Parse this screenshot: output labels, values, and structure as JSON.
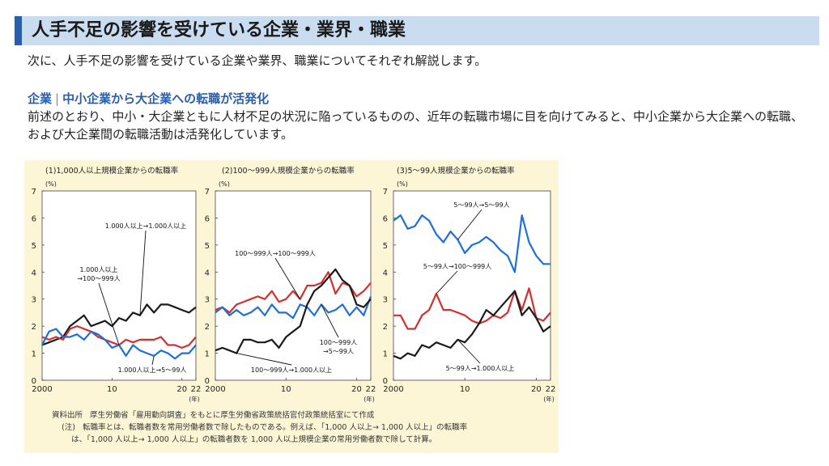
{
  "header": {
    "title": "人手不足の影響を受けている企業・業界・職業"
  },
  "intro": "次に、人手不足の影響を受けている企業や業界、職業についてそれぞれ解説します。",
  "section": {
    "label": "企業",
    "separator": "|",
    "heading": "中小企業から大企業への転職が活発化",
    "body": "前述のとおり、中小・大企業ともに人材不足の状況に陥っているものの、近年の転職市場に目を向けてみると、中小企業から大企業への転職、および大企業間の転職活動は活発化しています。"
  },
  "colors": {
    "black_series": "#1a1a1a",
    "red_series": "#d32f2f",
    "blue_series": "#1e6fd9",
    "figure_bg": "#fdf6d6"
  },
  "chart_data": [
    {
      "type": "line",
      "title": "(1)1,000人以上規模企業からの転職率",
      "y_unit": "(%)",
      "x_unit": "(年)",
      "ylim": [
        0,
        7
      ],
      "yticks": [
        0,
        1,
        2,
        3,
        4,
        5,
        6,
        7
      ],
      "xlim": [
        2000,
        2022
      ],
      "xticks": [
        {
          "v": 2000,
          "label": "2000"
        },
        {
          "v": 2010,
          "label": "10"
        },
        {
          "v": 2020,
          "label": "20"
        },
        {
          "v": 2022,
          "label": "22"
        }
      ],
      "x": [
        2000,
        2001,
        2002,
        2003,
        2004,
        2005,
        2006,
        2007,
        2008,
        2009,
        2010,
        2011,
        2012,
        2013,
        2014,
        2015,
        2016,
        2017,
        2018,
        2019,
        2020,
        2021,
        2022
      ],
      "series": [
        {
          "name": "1,000人以上→1,000人以上",
          "color": "black",
          "values": [
            1.3,
            1.4,
            1.5,
            1.6,
            2.0,
            2.2,
            2.4,
            2.0,
            2.1,
            2.2,
            2.0,
            2.3,
            2.2,
            2.5,
            2.4,
            2.8,
            2.5,
            2.8,
            2.8,
            2.7,
            2.6,
            2.5,
            2.7
          ]
        },
        {
          "name": "1,000人以上→100～999人",
          "color": "red",
          "values": [
            1.6,
            1.5,
            1.6,
            1.5,
            1.9,
            2.0,
            1.9,
            1.8,
            1.6,
            1.5,
            1.4,
            1.3,
            1.5,
            1.4,
            1.5,
            1.5,
            1.5,
            1.6,
            1.3,
            1.3,
            1.2,
            1.3,
            1.6
          ]
        },
        {
          "name": "1,000人以上→5～99人",
          "color": "blue",
          "values": [
            1.3,
            1.8,
            1.9,
            1.6,
            1.6,
            1.7,
            1.5,
            1.8,
            1.7,
            1.5,
            1.2,
            1.3,
            0.9,
            1.3,
            1.1,
            1.0,
            0.9,
            1.1,
            1.0,
            0.8,
            1.0,
            1.0,
            1.3
          ]
        }
      ],
      "annotations": [
        {
          "label_lines": [
            "1.000人以上→1.000人以上"
          ],
          "series": 0
        },
        {
          "label_lines": [
            "1.000人以上",
            "→100～999人"
          ],
          "series": 1
        },
        {
          "label_lines": [
            "1.000人以上→5～99人"
          ],
          "series": 2
        }
      ]
    },
    {
      "type": "line",
      "title": "(2)100～999人規模企業からの転職率",
      "y_unit": "(%)",
      "x_unit": "(年)",
      "ylim": [
        0,
        7
      ],
      "yticks": [
        0,
        1,
        2,
        3,
        4,
        5,
        6,
        7
      ],
      "xlim": [
        2000,
        2022
      ],
      "xticks": [
        {
          "v": 2000,
          "label": "2000"
        },
        {
          "v": 2010,
          "label": "10"
        },
        {
          "v": 2020,
          "label": "20"
        },
        {
          "v": 2022,
          "label": "22"
        }
      ],
      "x": [
        2000,
        2001,
        2002,
        2003,
        2004,
        2005,
        2006,
        2007,
        2008,
        2009,
        2010,
        2011,
        2012,
        2013,
        2014,
        2015,
        2016,
        2017,
        2018,
        2019,
        2020,
        2021,
        2022
      ],
      "series": [
        {
          "name": "100～999人→100～999人",
          "color": "red",
          "values": [
            2.6,
            2.7,
            2.5,
            2.8,
            2.9,
            3.0,
            3.1,
            3.0,
            3.3,
            2.9,
            3.0,
            3.3,
            3.0,
            3.5,
            3.5,
            3.6,
            4.0,
            3.2,
            3.6,
            3.5,
            3.1,
            3.3,
            3.6
          ]
        },
        {
          "name": "100～999人→5～99人",
          "color": "blue",
          "values": [
            2.5,
            2.7,
            2.4,
            2.6,
            2.4,
            2.5,
            2.7,
            2.4,
            2.8,
            2.5,
            2.5,
            2.3,
            2.8,
            2.7,
            2.4,
            2.8,
            2.5,
            2.6,
            2.8,
            2.4,
            2.7,
            2.4,
            3.1
          ]
        },
        {
          "name": "100～999人→1,000人以上",
          "color": "black",
          "values": [
            1.1,
            1.2,
            1.1,
            1.0,
            1.5,
            1.5,
            1.4,
            1.4,
            1.5,
            1.2,
            1.6,
            1.8,
            2.0,
            2.8,
            3.3,
            3.5,
            3.8,
            4.1,
            3.7,
            3.5,
            2.8,
            2.7,
            3.0
          ]
        }
      ],
      "annotations": [
        {
          "label_lines": [
            "100～999人→100～999人"
          ],
          "series": 0
        },
        {
          "label_lines": [
            "100～999人",
            "→5～99人"
          ],
          "series": 1
        },
        {
          "label_lines": [
            "100～999人→1.000人以上"
          ],
          "series": 2
        }
      ]
    },
    {
      "type": "line",
      "title": "(3)5～99人規模企業からの転職率",
      "y_unit": "(%)",
      "x_unit": "(年)",
      "ylim": [
        0,
        7
      ],
      "yticks": [
        0,
        1,
        2,
        3,
        4,
        5,
        6,
        7
      ],
      "xlim": [
        2000,
        2022
      ],
      "xticks": [
        {
          "v": 2000,
          "label": "2000"
        },
        {
          "v": 2010,
          "label": "10"
        },
        {
          "v": 2020,
          "label": "20"
        },
        {
          "v": 2022,
          "label": "22"
        }
      ],
      "x": [
        2000,
        2001,
        2002,
        2003,
        2004,
        2005,
        2006,
        2007,
        2008,
        2009,
        2010,
        2011,
        2012,
        2013,
        2014,
        2015,
        2016,
        2017,
        2018,
        2019,
        2020,
        2021,
        2022
      ],
      "series": [
        {
          "name": "5～99人→5～99人",
          "color": "blue",
          "values": [
            5.9,
            6.1,
            5.6,
            5.7,
            6.1,
            5.9,
            5.4,
            5.1,
            5.5,
            5.2,
            4.7,
            5.0,
            5.1,
            5.3,
            5.1,
            4.8,
            4.6,
            4.0,
            6.1,
            5.1,
            4.6,
            4.3,
            4.3
          ]
        },
        {
          "name": "5～99人→100～999人",
          "color": "red",
          "values": [
            2.4,
            2.4,
            1.9,
            1.9,
            2.4,
            2.6,
            3.2,
            2.6,
            2.6,
            2.5,
            2.4,
            2.2,
            2.1,
            2.2,
            2.4,
            2.3,
            2.5,
            3.3,
            2.6,
            3.4,
            2.3,
            2.2,
            2.5
          ]
        },
        {
          "name": "5～99人→1,000人以上",
          "color": "black",
          "values": [
            0.9,
            0.8,
            1.0,
            0.9,
            1.3,
            1.2,
            1.4,
            1.3,
            1.2,
            1.5,
            1.4,
            1.7,
            2.1,
            2.6,
            2.4,
            2.7,
            3.0,
            3.3,
            2.4,
            2.7,
            2.3,
            1.8,
            2.0
          ]
        }
      ],
      "annotations": [
        {
          "label_lines": [
            "5～99人→5～99人"
          ],
          "series": 0
        },
        {
          "label_lines": [
            "5～99人→100～999人"
          ],
          "series": 1
        },
        {
          "label_lines": [
            "5～99人→1.000人以上"
          ],
          "series": 2
        }
      ]
    }
  ],
  "notes": {
    "source_label": "資料出所",
    "source_text": "厚生労働省「雇用動向調査」をもとに厚生労働省政策統括官付政策統括室にて作成",
    "note_label": "(注)",
    "note_line1": "転職率とは、転職者数を常用労働者数で除したものである。例えば、「1,000 人以上→ 1,000 人以上」の転職率",
    "note_line2": "は、「1,000 人以上→ 1,000 人以上」の転職者数を 1,000 人以上規模企業の常用労働者数で除して計算。"
  }
}
